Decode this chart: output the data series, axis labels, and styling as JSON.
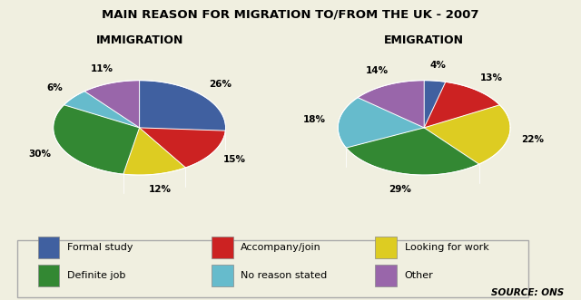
{
  "title": "MAIN REASON FOR MIGRATION TO/FROM THE UK - 2007",
  "immigration_title": "IMMIGRATION",
  "emigration_title": "EMIGRATION",
  "source": "SOURCE: ONS",
  "categories": [
    "Formal study",
    "Accompany/join",
    "Looking for work",
    "Definite job",
    "No reason stated",
    "Other"
  ],
  "colors": [
    "#4060a0",
    "#cc2222",
    "#ddcc22",
    "#338833",
    "#66bbcc",
    "#9966aa"
  ],
  "immigration_values": [
    26,
    15,
    12,
    30,
    6,
    11
  ],
  "emigration_values": [
    4,
    13,
    22,
    29,
    18,
    14
  ],
  "immigration_labels": [
    "26%",
    "15%",
    "12%",
    "30%",
    "6%",
    "11%"
  ],
  "emigration_labels": [
    "4%",
    "13%",
    "22%",
    "29%",
    "18%",
    "14%"
  ],
  "background_color": "#f0efe0"
}
